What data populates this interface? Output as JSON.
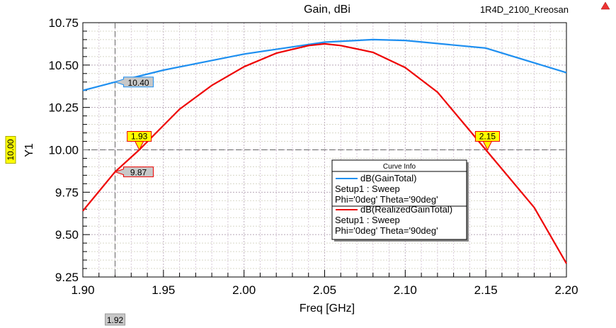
{
  "project_label": "1R4D_2100_Kreosan",
  "chart_data": {
    "type": "line",
    "title": "Gain, dBi",
    "xlabel": "Freq [GHz]",
    "ylabel": "Y1",
    "xlim": [
      1.9,
      2.2
    ],
    "ylim": [
      9.25,
      10.75
    ],
    "xticks": [
      "1.90",
      "1.95",
      "2.00",
      "2.05",
      "2.10",
      "2.15",
      "2.20"
    ],
    "yticks": [
      "9.25",
      "9.50",
      "9.75",
      "10.00",
      "10.25",
      "10.50",
      "10.75"
    ],
    "grid": true,
    "series": [
      {
        "name": "dB(GainTotal)",
        "setup": "Setup1 : Sweep",
        "params": "Phi='0deg' Theta='90deg'",
        "color": "#1e8ff0",
        "x": [
          1.9,
          1.92,
          1.95,
          2.0,
          2.05,
          2.08,
          2.1,
          2.15,
          2.2
        ],
        "y": [
          10.35,
          10.4,
          10.47,
          10.565,
          10.635,
          10.65,
          10.645,
          10.6,
          10.455
        ]
      },
      {
        "name": "dB(RealizedGainTotal)",
        "setup": "Setup1 : Sweep",
        "params": "Phi='0deg' Theta='90deg'",
        "color": "#ee0000",
        "x": [
          1.9,
          1.92,
          1.935,
          1.96,
          1.98,
          2.0,
          2.02,
          2.04,
          2.05,
          2.06,
          2.08,
          2.1,
          2.12,
          2.15,
          2.18,
          2.2
        ],
        "y": [
          9.64,
          9.87,
          10.0,
          10.24,
          10.38,
          10.49,
          10.57,
          10.615,
          10.625,
          10.615,
          10.575,
          10.485,
          10.34,
          10.0,
          9.66,
          9.33
        ]
      }
    ],
    "legend": {
      "title": "Curve Info",
      "placement": "center-right"
    },
    "markers": {
      "x_cursor": {
        "x": 1.92,
        "label": "1.92"
      },
      "y_cursor": {
        "y": 10.0,
        "label": "10.00"
      },
      "points": [
        {
          "x": 1.92,
          "y": 10.4,
          "label": "10.40",
          "style": "value-blue"
        },
        {
          "x": 1.92,
          "y": 9.87,
          "label": "9.87",
          "style": "value-red"
        },
        {
          "x": 1.935,
          "y": 10.0,
          "label": "1.93",
          "style": "flag"
        },
        {
          "x": 2.151,
          "y": 10.0,
          "label": "2.15",
          "style": "flag"
        }
      ]
    }
  }
}
